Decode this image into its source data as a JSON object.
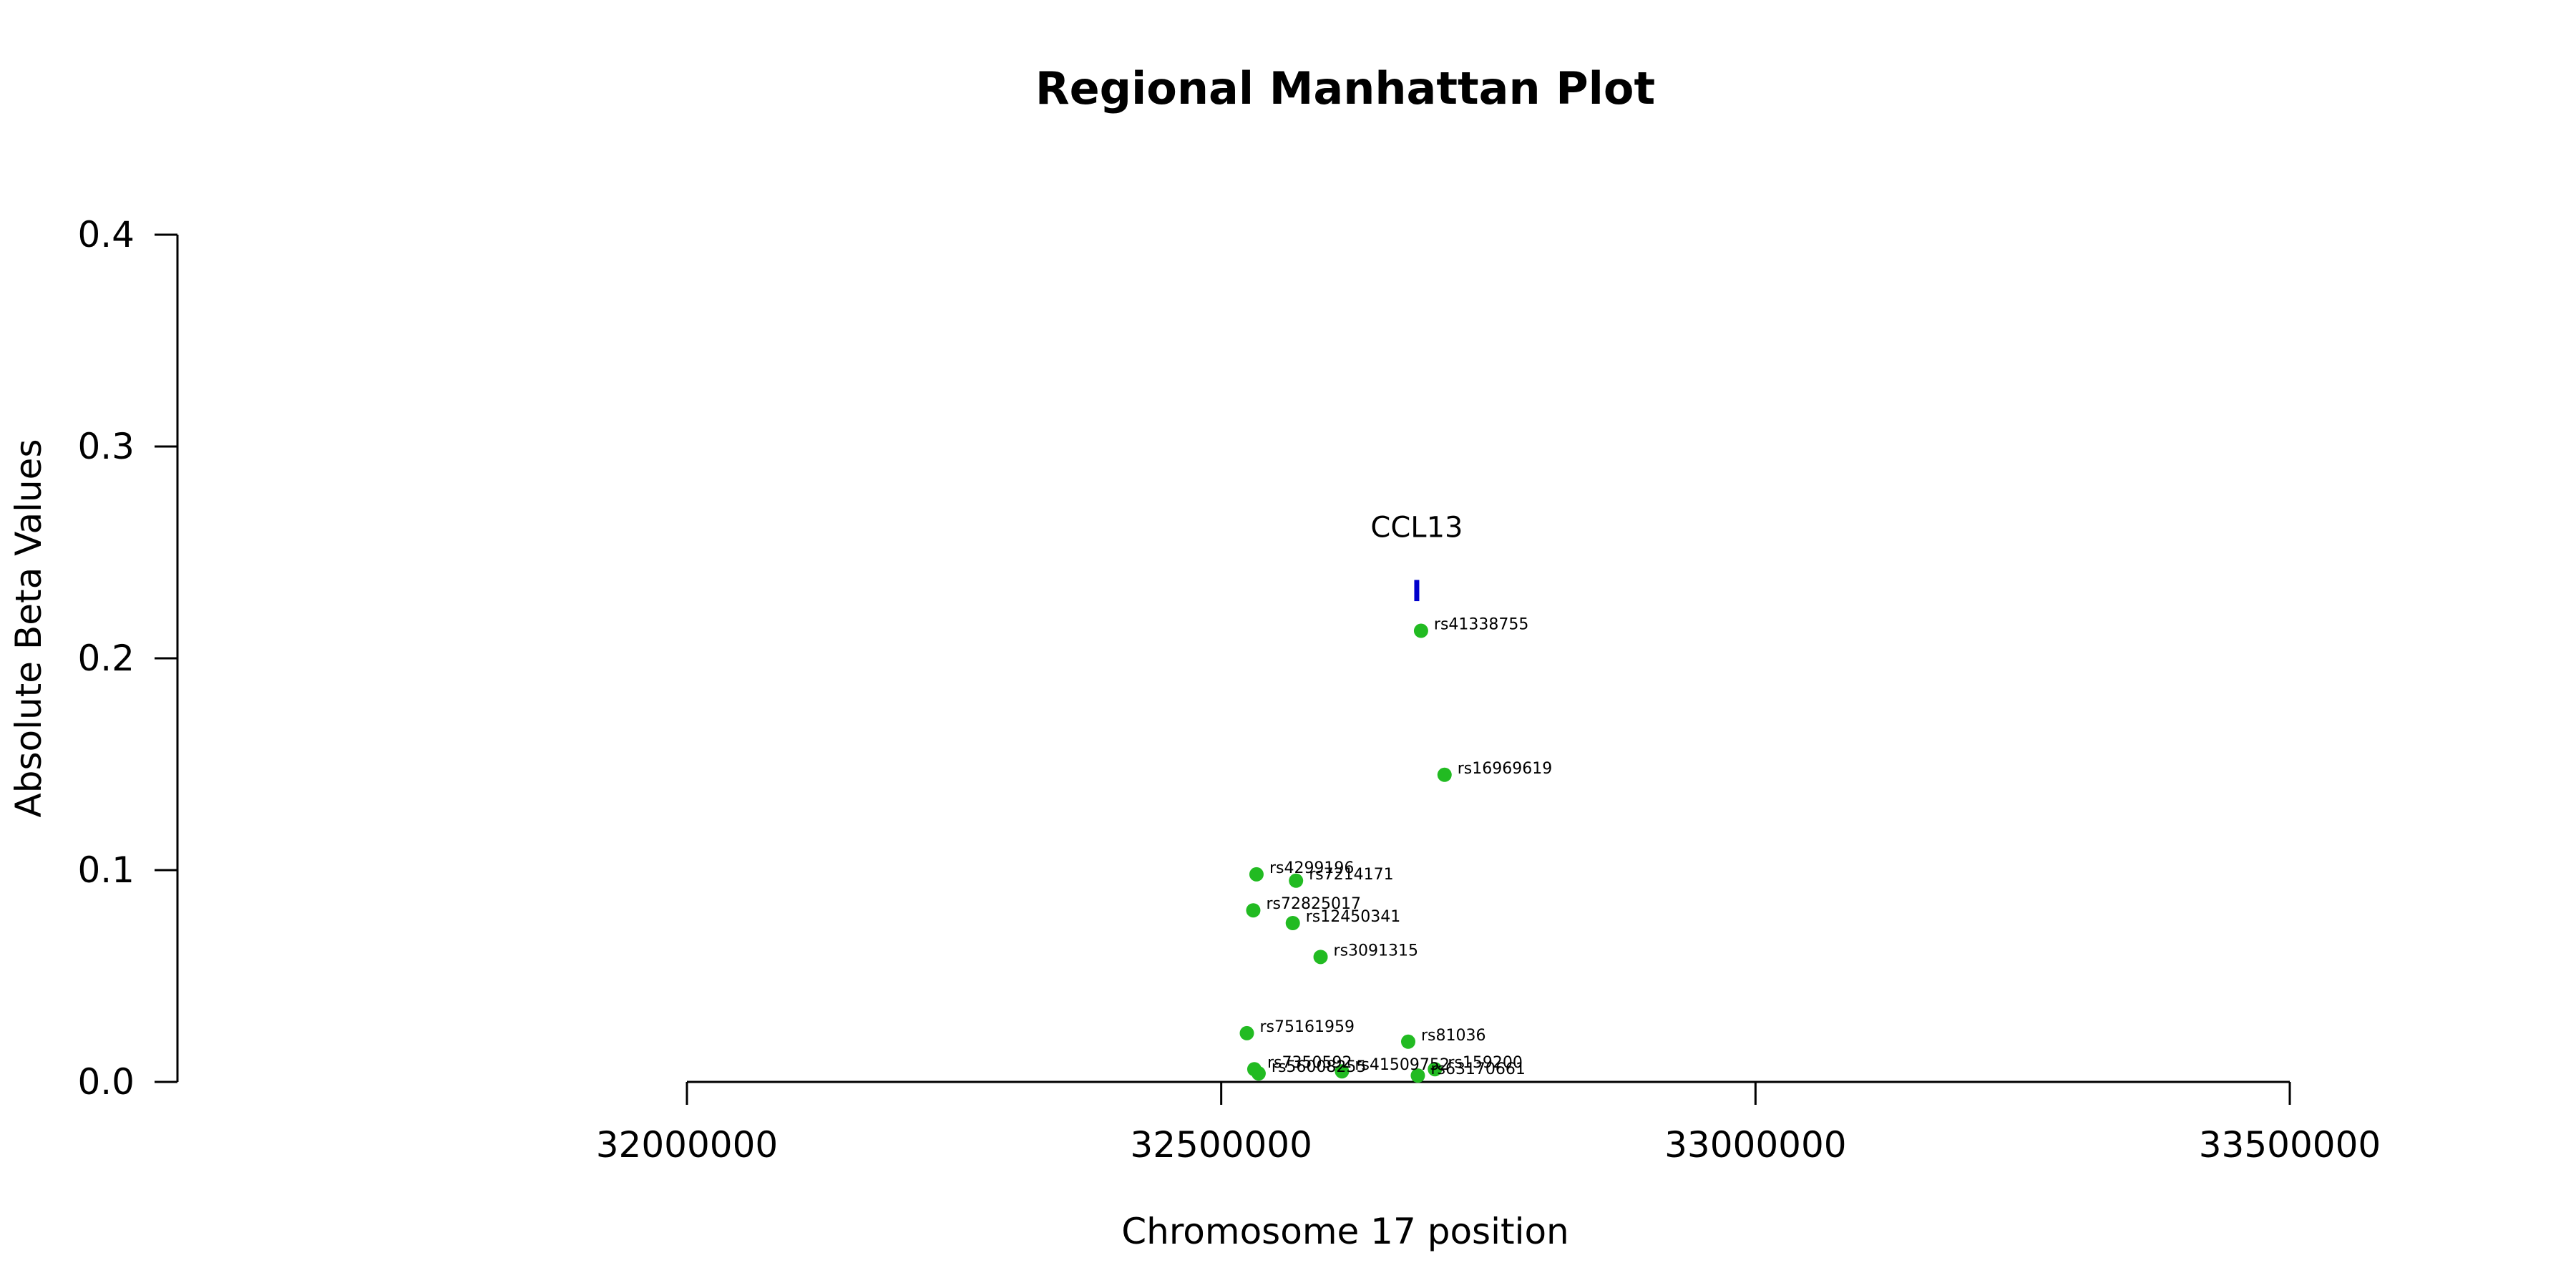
{
  "chart_data": {
    "type": "scatter",
    "title": "Regional Manhattan Plot",
    "xlabel": "Chromosome 17 position",
    "ylabel": "Absolute Beta Values",
    "xlim": [
      32000000,
      33500000
    ],
    "ylim": [
      0,
      0.4
    ],
    "x_ticks": [
      "32000000",
      "32500000",
      "33000000",
      "33500000"
    ],
    "y_ticks": [
      "0.0",
      "0.1",
      "0.2",
      "0.3",
      "0.4"
    ],
    "grid": false,
    "point_color": "#22bb22",
    "gene_color": "#0000cc",
    "genes": [
      {
        "name": "CCL13",
        "x": 32683000,
        "y_low": 0.227,
        "y_high": 0.237
      }
    ],
    "points": [
      {
        "label": "rs41338755",
        "x": 32687000,
        "y": 0.213
      },
      {
        "label": "rs16969619",
        "x": 32709000,
        "y": 0.145
      },
      {
        "label": "rs4299196",
        "x": 32533000,
        "y": 0.098
      },
      {
        "label": "rs7214171",
        "x": 32570000,
        "y": 0.095
      },
      {
        "label": "rs72825017",
        "x": 32530000,
        "y": 0.081
      },
      {
        "label": "rs12450341",
        "x": 32567000,
        "y": 0.075
      },
      {
        "label": "rs3091315",
        "x": 32593000,
        "y": 0.059
      },
      {
        "label": "rs75161959",
        "x": 32524000,
        "y": 0.023
      },
      {
        "label": "rs81036",
        "x": 32675000,
        "y": 0.019
      },
      {
        "label": "rs7350592",
        "x": 32531000,
        "y": 0.006
      },
      {
        "label": "rs56008255",
        "x": 32535000,
        "y": 0.004
      },
      {
        "label": "rs41509752",
        "x": 32613000,
        "y": 0.005
      },
      {
        "label": "rs159200",
        "x": 32700000,
        "y": 0.006
      },
      {
        "label": "rs63170661",
        "x": 32684000,
        "y": 0.003
      }
    ]
  }
}
